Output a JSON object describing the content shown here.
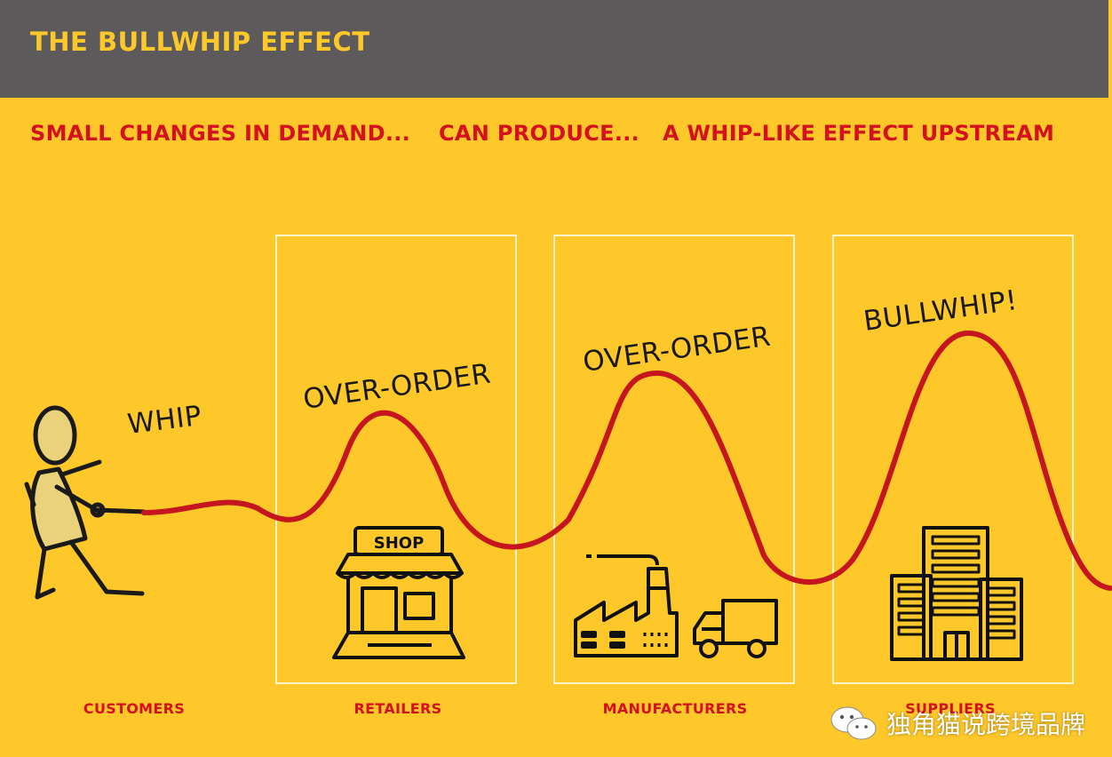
{
  "header": {
    "title": "THE BULLWHIP EFFECT"
  },
  "subtitles": [
    "SMALL CHANGES IN DEMAND...",
    "CAN PRODUCE...",
    "A WHIP-LIKE EFFECT UPSTREAM"
  ],
  "stages": [
    "CUSTOMERS",
    "RETAILERS",
    "MANUFACTURERS",
    "SUPPLIERS"
  ],
  "annotations": {
    "whip": "WHIP",
    "over_order_1": "OVER-ORDER",
    "over_order_2": "OVER-ORDER",
    "bullwhip": "BULLWHIP!"
  },
  "shop_sign": "SHOP",
  "watermark": {
    "text": "独角猫说跨境品牌",
    "icon": "wechat-icon"
  },
  "colors": {
    "background": "#ffc82a",
    "header": "#5c5a5b",
    "accent_red": "#d4111f",
    "box_border": "#fff4cc",
    "line": "#111111"
  },
  "icons": [
    "stick-figure-icon",
    "shop-icon",
    "factory-icon",
    "truck-icon",
    "office-building-icon"
  ]
}
